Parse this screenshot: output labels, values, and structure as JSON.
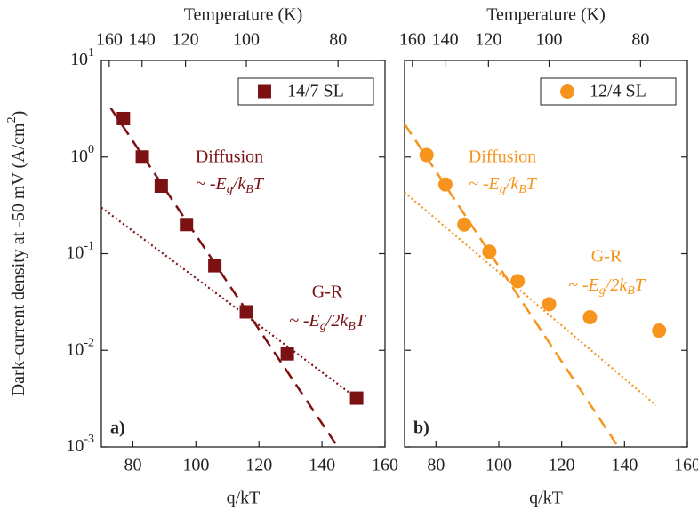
{
  "chart_data": [
    {
      "type": "scatter",
      "panel_label": "a)",
      "xlabel": "q/kT",
      "x2label": "Temperature (K)",
      "ylabel": [
        "Dark-current density at -50 mV (A/cm",
        "2",
        ")"
      ],
      "log_y": true,
      "legend": "upper right",
      "xlim": [
        70,
        160
      ],
      "xticks": [
        80,
        100,
        120,
        140,
        160
      ],
      "x2ticks": [
        {
          "value": 72.5,
          "label": "160"
        },
        {
          "value": 82.9,
          "label": "140"
        },
        {
          "value": 96.7,
          "label": "120"
        },
        {
          "value": 116,
          "label": "100"
        },
        {
          "value": 145.1,
          "label": "80"
        }
      ],
      "ylim": [
        0.001,
        10
      ],
      "yticks": [
        {
          "value": 0.001,
          "label": "10",
          "exponent": "-3"
        },
        {
          "value": 0.01,
          "label": "10",
          "exponent": "-2"
        },
        {
          "value": 0.1,
          "label": "10",
          "exponent": "-1"
        },
        {
          "value": 1,
          "label": "10",
          "exponent": "0"
        },
        {
          "value": 10,
          "label": "10",
          "exponent": "1"
        }
      ],
      "show_ytick_labels": true,
      "series": [
        {
          "name": "14/7 SL",
          "color": "#7b1113",
          "marker": "square",
          "x": [
            77,
            83,
            89,
            97,
            106,
            116,
            129,
            151
          ],
          "values": [
            2.5,
            1.0,
            0.5,
            0.2,
            0.075,
            0.025,
            0.0092,
            0.0032
          ]
        }
      ],
      "fits": [
        {
          "style": "dashed",
          "x": [
            73,
            145
          ],
          "values": [
            3.2,
            0.001
          ]
        },
        {
          "style": "dotted",
          "x": [
            70,
            151
          ],
          "values": [
            0.3,
            0.0032
          ]
        }
      ],
      "annotations": [
        {
          "text": "Diffusion",
          "formula": [
            "~ -E",
            "g",
            "/k",
            "B",
            "T"
          ]
        },
        {
          "text": "G-R",
          "formula": [
            "~ -E",
            "g",
            "/2k",
            "B",
            "T"
          ]
        }
      ]
    },
    {
      "type": "scatter",
      "panel_label": "b)",
      "xlabel": "q/kT",
      "x2label": "Temperature (K)",
      "log_y": true,
      "legend": "upper right",
      "xlim": [
        70,
        160
      ],
      "xticks": [
        80,
        100,
        120,
        140,
        160
      ],
      "x2ticks": [
        {
          "value": 72.5,
          "label": "160"
        },
        {
          "value": 82.9,
          "label": "140"
        },
        {
          "value": 96.7,
          "label": "120"
        },
        {
          "value": 116,
          "label": "100"
        },
        {
          "value": 145.1,
          "label": "80"
        }
      ],
      "ylim": [
        0.001,
        10
      ],
      "yticks": [
        0.001,
        0.01,
        0.1,
        1,
        10
      ],
      "show_ytick_labels": false,
      "series": [
        {
          "name": "12/4 SL",
          "color": "#f7941d",
          "marker": "circle",
          "x": [
            77,
            83,
            89,
            97,
            106,
            116,
            129,
            151
          ],
          "values": [
            1.05,
            0.52,
            0.2,
            0.105,
            0.052,
            0.03,
            0.022,
            0.016
          ]
        }
      ],
      "fits": [
        {
          "style": "dashed",
          "x": [
            70,
            138
          ],
          "values": [
            2.2,
            0.001
          ]
        },
        {
          "style": "dotted",
          "x": [
            70,
            150
          ],
          "values": [
            0.43,
            0.0027
          ]
        }
      ],
      "annotations": [
        {
          "text": "Diffusion",
          "formula": [
            "~ -E",
            "g",
            "/k",
            "B",
            "T"
          ]
        },
        {
          "text": "G-R",
          "formula": [
            "~ -E",
            "g",
            "/2k",
            "B",
            "T"
          ]
        }
      ]
    }
  ]
}
